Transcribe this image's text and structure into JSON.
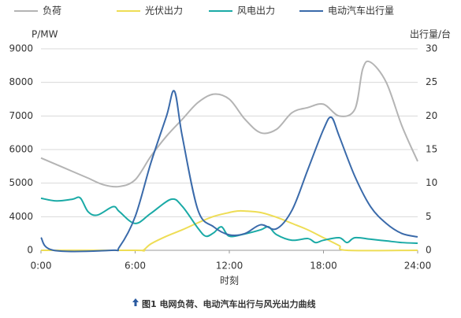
{
  "chart_data": {
    "type": "line",
    "y_label": "P/MW",
    "y2_label": "出行量/台",
    "x_label": "时刻",
    "caption": "图1 电网负荷、电动汽车出行与风光出力曲线",
    "xlim": [
      0,
      24
    ],
    "xticks": [
      {
        "value": 0,
        "label": "0:00"
      },
      {
        "value": 6,
        "label": "6:00"
      },
      {
        "value": 12,
        "label": "12:00"
      },
      {
        "value": 18,
        "label": "18:00"
      },
      {
        "value": 24,
        "label": "24:00"
      }
    ],
    "ylim": [
      3000,
      9000
    ],
    "yticks": [
      {
        "value": 3000,
        "label": "0"
      },
      4000,
      5000,
      6000,
      7000,
      8000,
      9000
    ],
    "y2lim": [
      0,
      30
    ],
    "y2ticks": [
      0,
      5,
      10,
      15,
      20,
      25,
      30
    ],
    "grid": true,
    "series": [
      {
        "name": "负荷",
        "color": "#b4b4b4",
        "x": [
          0,
          1,
          2,
          3,
          4,
          5,
          6,
          7,
          8,
          9,
          10,
          11,
          12,
          13,
          14,
          15,
          16,
          17,
          18,
          19,
          20,
          20.5,
          21,
          22,
          23,
          24
        ],
        "values": [
          5750,
          5550,
          5350,
          5150,
          4950,
          4900,
          5100,
          5800,
          6400,
          6900,
          7400,
          7650,
          7500,
          6900,
          6500,
          6600,
          7100,
          7250,
          7350,
          7000,
          7200,
          8400,
          8600,
          8000,
          6700,
          5650
        ]
      },
      {
        "name": "光伏出力",
        "color": "#eedd55",
        "x": [
          0,
          6,
          6.5,
          7,
          8,
          9,
          10,
          11,
          12,
          12.5,
          13,
          14,
          15,
          16,
          17,
          18,
          19,
          19.5,
          24
        ],
        "values": [
          3000,
          3000,
          3000,
          3190,
          3420,
          3610,
          3820,
          4010,
          4125,
          4170,
          4170,
          4125,
          3985,
          3800,
          3610,
          3375,
          3140,
          3000,
          3000
        ]
      },
      {
        "name": "风电出力",
        "color": "#1aaaa6",
        "x": [
          0,
          1,
          2,
          2.5,
          3,
          3.6,
          4.6,
          5,
          6,
          7,
          8.3,
          9,
          10,
          10.5,
          11,
          11.5,
          12,
          13,
          14,
          14.5,
          15,
          16,
          17,
          17.5,
          18,
          19,
          19.5,
          20,
          21,
          22,
          23,
          24
        ],
        "values": [
          4550,
          4470,
          4520,
          4560,
          4150,
          4050,
          4300,
          4150,
          3800,
          4100,
          4520,
          4310,
          3660,
          3420,
          3520,
          3700,
          3420,
          3490,
          3610,
          3700,
          3470,
          3300,
          3350,
          3230,
          3300,
          3375,
          3230,
          3375,
          3330,
          3280,
          3230,
          3210
        ]
      },
      {
        "name": "电动汽车出行量",
        "color": "#3a6aaa",
        "axis": "y2",
        "x": [
          0,
          0.8,
          4.5,
          5,
          6,
          7,
          8,
          8.5,
          9,
          10,
          11,
          12,
          13,
          14,
          15,
          16,
          17,
          18,
          18.5,
          19,
          20,
          21,
          22,
          23,
          24
        ],
        "values": [
          1.9,
          0,
          0,
          0.5,
          5,
          13,
          20,
          23.7,
          17,
          6,
          3.5,
          2.3,
          2.5,
          3.8,
          3.2,
          6,
          12,
          18,
          19.8,
          17,
          11,
          6.5,
          4,
          2.5,
          2
        ]
      }
    ]
  }
}
